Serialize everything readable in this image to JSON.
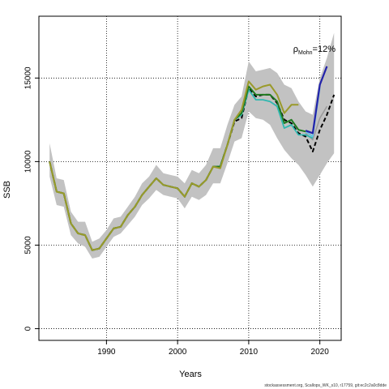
{
  "chart_data": {
    "type": "line",
    "xlabel": "Years",
    "ylabel": "SSB",
    "xlim": [
      1980.5,
      2023
    ],
    "ylim": [
      -700,
      18700
    ],
    "x_ticks": [
      1990,
      2000,
      2010,
      2020
    ],
    "y_ticks": [
      0,
      5000,
      10000,
      15000
    ],
    "grid": "dotted at ticks",
    "annotation": {
      "rho_symbol": "ρ",
      "rho_sub": "Mohn",
      "rho_value": "=12%"
    },
    "footer": "stockassessment.org, Scallops_WK_s10, r17759, git:ec2c2a0c8dde",
    "band_years": [
      1982,
      1983,
      1984,
      1985,
      1986,
      1987,
      1988,
      1989,
      1990,
      1991,
      1992,
      1993,
      1994,
      1995,
      1996,
      1997,
      1998,
      1999,
      2000,
      2001,
      2002,
      2003,
      2004,
      2005,
      2006,
      2007,
      2008,
      2009,
      2010,
      2011,
      2012,
      2013,
      2014,
      2015,
      2016,
      2017,
      2018,
      2019,
      2020,
      2021,
      2022
    ],
    "band_low": [
      9100,
      7400,
      7300,
      5600,
      5100,
      4900,
      4200,
      4300,
      4900,
      5500,
      5700,
      6200,
      6700,
      7400,
      7800,
      8300,
      8000,
      7900,
      7800,
      7200,
      7900,
      7700,
      8000,
      8700,
      8700,
      9900,
      11200,
      11400,
      13000,
      12600,
      12500,
      12200,
      11400,
      10700,
      10200,
      9800,
      9200,
      8500,
      9200,
      9900,
      10500
    ],
    "band_high": [
      11100,
      9000,
      8900,
      7000,
      6400,
      6400,
      5200,
      5400,
      5900,
      6600,
      6700,
      7300,
      7900,
      8700,
      9100,
      9800,
      9300,
      9200,
      9100,
      8700,
      9500,
      9300,
      9800,
      10800,
      10800,
      12200,
      13400,
      13900,
      16000,
      15400,
      15500,
      15600,
      15300,
      14600,
      14400,
      13600,
      13000,
      12800,
      15000,
      16200,
      17700
    ],
    "series": [
      {
        "color": "#000000",
        "dashed": true,
        "width": 2,
        "x": [
          1982,
          1983,
          1984,
          1985,
          1986,
          1987,
          1988,
          1989,
          1990,
          1991,
          1992,
          1993,
          1994,
          1995,
          1996,
          1997,
          1998,
          1999,
          2000,
          2001,
          2002,
          2003,
          2004,
          2005,
          2006,
          2007,
          2008,
          2009,
          2010,
          2011,
          2012,
          2013,
          2014,
          2015,
          2016,
          2017,
          2018,
          2019,
          2020,
          2021,
          2022
        ],
        "y": [
          10000,
          8200,
          8100,
          6300,
          5700,
          5600,
          4700,
          4800,
          5400,
          6000,
          6100,
          6800,
          7300,
          8000,
          8500,
          9000,
          8600,
          8500,
          8400,
          7900,
          8700,
          8500,
          8900,
          9700,
          9700,
          11000,
          12400,
          12600,
          14400,
          13900,
          14000,
          14000,
          13500,
          12500,
          12300,
          11700,
          11500,
          10600,
          11900,
          12800,
          14000
        ]
      },
      {
        "color": "#9a9a9a",
        "dashed": false,
        "width": 1.5,
        "x": [
          2018,
          2019,
          2020,
          2021
        ],
        "y": [
          11700,
          11300,
          12600,
          13300
        ]
      },
      {
        "color": "#58c3e8",
        "dashed": false,
        "width": 1.5,
        "x": [
          2018,
          2019,
          2020
        ],
        "y": [
          11800,
          11500,
          14400
        ]
      },
      {
        "color": "#2222aa",
        "dashed": false,
        "width": 2.2,
        "x": [
          2018,
          2019,
          2020,
          2021
        ],
        "y": [
          11850,
          11700,
          14600,
          15700
        ]
      },
      {
        "color": "#30b8b0",
        "dashed": false,
        "width": 1.8,
        "x": [
          1982,
          1983,
          1984,
          1985,
          1986,
          1987,
          1988,
          1989,
          1990,
          1991,
          1992,
          1993,
          1994,
          1995,
          1996,
          1997,
          1998,
          1999,
          2000,
          2001,
          2002,
          2003,
          2004,
          2005,
          2006,
          2007,
          2008,
          2009,
          2010,
          2011,
          2012,
          2013,
          2014,
          2015,
          2016,
          2017,
          2018,
          2019
        ],
        "y": [
          10000,
          8200,
          8100,
          6300,
          5700,
          5600,
          4700,
          4800,
          5400,
          6000,
          6100,
          6800,
          7300,
          8000,
          8500,
          9000,
          8600,
          8500,
          8400,
          7900,
          8700,
          8500,
          8900,
          9700,
          9700,
          11000,
          12500,
          12800,
          14300,
          13700,
          13700,
          13600,
          13300,
          12000,
          12200,
          11600,
          11600,
          11400
        ]
      },
      {
        "color": "#1f7a1f",
        "dashed": false,
        "width": 2,
        "x": [
          1982,
          1983,
          1984,
          1985,
          1986,
          1987,
          1988,
          1989,
          1990,
          1991,
          1992,
          1993,
          1994,
          1995,
          1996,
          1997,
          1998,
          1999,
          2000,
          2001,
          2002,
          2003,
          2004,
          2005,
          2006,
          2007,
          2008,
          2009,
          2010,
          2011,
          2012,
          2013,
          2014,
          2015,
          2016,
          2017,
          2018
        ],
        "y": [
          10000,
          8200,
          8100,
          6300,
          5700,
          5600,
          4700,
          4800,
          5400,
          6000,
          6100,
          6800,
          7300,
          8000,
          8500,
          9000,
          8600,
          8500,
          8400,
          7900,
          8700,
          8500,
          8900,
          9700,
          9700,
          11000,
          12500,
          12900,
          14500,
          14000,
          14000,
          14000,
          13600,
          12300,
          12500,
          11900,
          11800
        ]
      },
      {
        "color": "#9a9a2a",
        "dashed": false,
        "width": 2,
        "x": [
          1982,
          1983,
          1984,
          1985,
          1986,
          1987,
          1988,
          1989,
          1990,
          1991,
          1992,
          1993,
          1994,
          1995,
          1996,
          1997,
          1998,
          1999,
          2000,
          2001,
          2002,
          2003,
          2004,
          2005,
          2006,
          2007,
          2008,
          2009,
          2010,
          2011,
          2012,
          2013,
          2014,
          2015,
          2016,
          2017
        ],
        "y": [
          10000,
          8200,
          8100,
          6300,
          5700,
          5600,
          4700,
          4800,
          5400,
          6000,
          6100,
          6800,
          7300,
          8000,
          8500,
          9000,
          8600,
          8500,
          8400,
          7900,
          8700,
          8500,
          8900,
          9700,
          9600,
          11000,
          12500,
          13100,
          14800,
          14300,
          14500,
          14600,
          14000,
          12900,
          13400,
          13400
        ]
      }
    ]
  }
}
